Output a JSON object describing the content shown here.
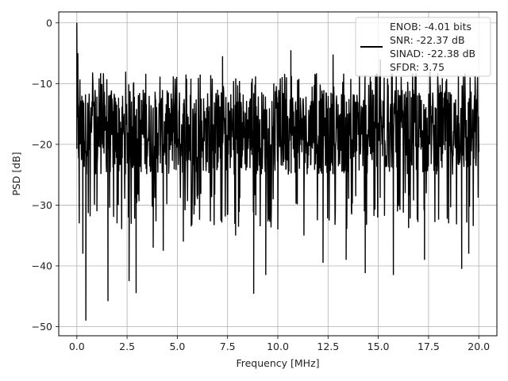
{
  "chart_data": {
    "type": "line",
    "xlabel": "Frequency [MHz]",
    "ylabel": "PSD [dB]",
    "xlim": [
      -0.9,
      20.9
    ],
    "ylim": [
      -51.5,
      1.8
    ],
    "x_ticks": [
      0.0,
      2.5,
      5.0,
      7.5,
      10.0,
      12.5,
      15.0,
      17.5,
      20.0
    ],
    "x_tick_labels": [
      "0.0",
      "2.5",
      "5.0",
      "7.5",
      "10.0",
      "12.5",
      "15.0",
      "17.5",
      "20.0"
    ],
    "y_ticks": [
      0,
      -10,
      -20,
      -30,
      -40,
      -50
    ],
    "y_tick_labels": [
      "0",
      "−10",
      "−20",
      "−30",
      "−40",
      "−50"
    ],
    "grid": true,
    "legend_position": "upper-right",
    "legend_entries": [
      "ENOB: -4.01 bits",
      "SNR: -22.37 dB",
      "SINAD: -22.38 dB",
      "SFDR: 3.75"
    ],
    "series_color": "#000000",
    "series": [
      {
        "x_range": [
          0.0,
          20.0
        ],
        "typical_range": [
          -25,
          -11
        ],
        "points": [
          {
            "x": 0.0,
            "y": 0.0
          },
          {
            "x": 0.05,
            "y": -5.0
          },
          {
            "x": 0.12,
            "y": -33.0
          },
          {
            "x": 0.25,
            "y": -12.0
          },
          {
            "x": 0.3,
            "y": -38.0
          },
          {
            "x": 0.45,
            "y": -49.0
          },
          {
            "x": 0.6,
            "y": -14.0
          },
          {
            "x": 1.0,
            "y": -31.0
          },
          {
            "x": 1.55,
            "y": -45.8
          },
          {
            "x": 2.0,
            "y": -33.0
          },
          {
            "x": 2.6,
            "y": -42.5
          },
          {
            "x": 2.95,
            "y": -44.5
          },
          {
            "x": 3.3,
            "y": -11.0
          },
          {
            "x": 3.8,
            "y": -37.0
          },
          {
            "x": 4.3,
            "y": -37.5
          },
          {
            "x": 4.9,
            "y": -11.0
          },
          {
            "x": 5.3,
            "y": -36.0
          },
          {
            "x": 6.0,
            "y": -29.0
          },
          {
            "x": 7.0,
            "y": -11.0
          },
          {
            "x": 7.25,
            "y": -5.5
          },
          {
            "x": 7.9,
            "y": -35.0
          },
          {
            "x": 8.8,
            "y": -44.6
          },
          {
            "x": 9.4,
            "y": -41.5
          },
          {
            "x": 10.0,
            "y": -34.0
          },
          {
            "x": 10.65,
            "y": -4.5
          },
          {
            "x": 11.3,
            "y": -35.0
          },
          {
            "x": 12.25,
            "y": -39.5
          },
          {
            "x": 12.75,
            "y": -5.2
          },
          {
            "x": 13.4,
            "y": -39.0
          },
          {
            "x": 14.35,
            "y": -41.2
          },
          {
            "x": 15.1,
            "y": -6.0
          },
          {
            "x": 15.75,
            "y": -41.5
          },
          {
            "x": 17.3,
            "y": -39.0
          },
          {
            "x": 18.5,
            "y": -33.0
          },
          {
            "x": 19.15,
            "y": -40.5
          },
          {
            "x": 19.5,
            "y": -38.0
          },
          {
            "x": 20.0,
            "y": -20.0
          }
        ]
      }
    ]
  }
}
